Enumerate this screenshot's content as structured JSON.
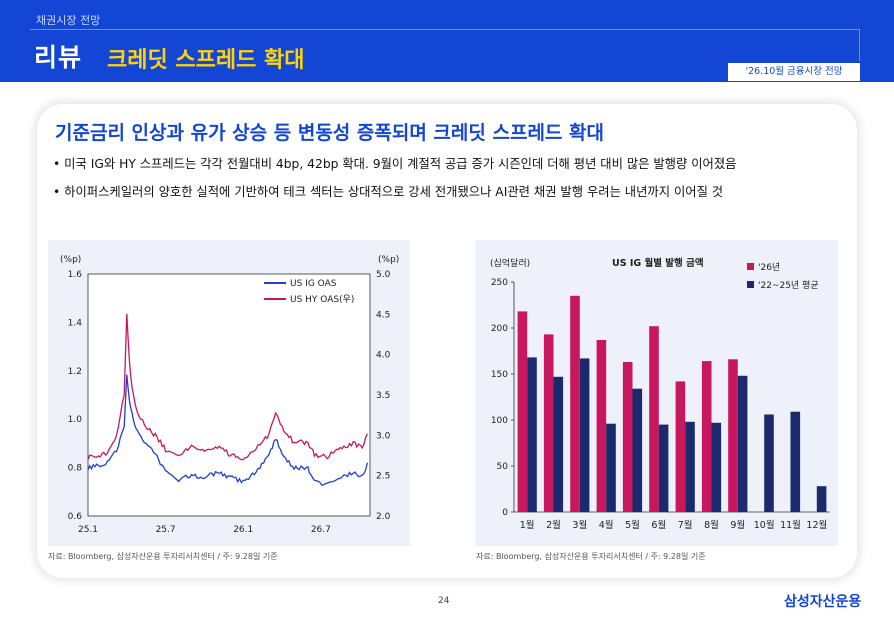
{
  "header": {
    "section": "채권시장 전망",
    "title": "리뷰",
    "subtitle": "크레딧 스프레드 확대",
    "date_badge": "'26.10월 금융시장 전망"
  },
  "main": {
    "headline": "기준금리 인상과 유가 상승 등 변동성 증폭되며 크레딧 스프레드 확대",
    "bullets": [
      "• 미국 IG와 HY 스프레드는 각각 전월대비 4bp, 42bp 확대. 9월이 계절적 공급 증가 시즌인데 더해 평년 대비 많은 발행량 이어졌음",
      "• 하이퍼스케일러의 양호한 실적에 기반하여 테크 섹터는 상대적으로 강세 전개됐으나 AI관련 채권 발행 우려는 내년까지 이어질 것"
    ]
  },
  "footer": {
    "source_left": "자료: Bloomberg, 삼성자산운용 투자리서치센터 / 주: 9.28일 기준",
    "source_right": "자료: Bloomberg, 삼성자산운용 투자리서치센터 / 주: 9.28일 기준",
    "page_number": "24",
    "logo_text": "삼성자산운용"
  },
  "colors": {
    "brand_blue": "#1446d6",
    "accent_yellow": "#ffd400",
    "ig_line": "#1f3fd4",
    "hy_line": "#c8175d",
    "bar_2026": "#c8175d",
    "bar_avg": "#1a2a6c"
  },
  "chart_data": [
    {
      "type": "line",
      "title": "",
      "left_unit": "(%p)",
      "right_unit": "(%p)",
      "x_ticks": [
        "25.1",
        "25.7",
        "26.1",
        "26.7"
      ],
      "y_left_ticks": [
        "1.6",
        "1.4",
        "1.2",
        "1.0",
        "0.8",
        "0.6"
      ],
      "y_right_ticks": [
        "5.0",
        "4.5",
        "4.0",
        "3.5",
        "3.0",
        "2.5",
        "2.0"
      ],
      "ylim_left": [
        0.6,
        1.6
      ],
      "ylim_right": [
        2.0,
        5.0
      ],
      "xlim": [
        "25.1",
        "26.10"
      ],
      "legend_position": "top-right",
      "series": [
        {
          "name": "US IG OAS",
          "axis": "left",
          "color": "#1f3fd4",
          "points": [
            [
              0,
              0.8
            ],
            [
              0.8,
              0.81
            ],
            [
              1.5,
              0.82
            ],
            [
              2.2,
              0.87
            ],
            [
              2.8,
              0.97
            ],
            [
              3.0,
              1.18
            ],
            [
              3.2,
              1.08
            ],
            [
              3.4,
              1.02
            ],
            [
              3.8,
              0.95
            ],
            [
              4.5,
              0.9
            ],
            [
              5.2,
              0.86
            ],
            [
              6.0,
              0.78
            ],
            [
              7.0,
              0.75
            ],
            [
              8.0,
              0.77
            ],
            [
              9.0,
              0.76
            ],
            [
              10.0,
              0.78
            ],
            [
              11.0,
              0.76
            ],
            [
              12.0,
              0.74
            ],
            [
              13.0,
              0.78
            ],
            [
              14.0,
              0.85
            ],
            [
              14.5,
              0.92
            ],
            [
              15.0,
              0.86
            ],
            [
              15.8,
              0.8
            ],
            [
              16.6,
              0.8
            ],
            [
              17.0,
              0.8
            ],
            [
              17.5,
              0.74
            ],
            [
              18.5,
              0.73
            ],
            [
              19.5,
              0.76
            ],
            [
              20.5,
              0.78
            ],
            [
              21.2,
              0.76
            ],
            [
              21.6,
              0.82
            ]
          ]
        },
        {
          "name": "US HY OAS(우)",
          "axis": "right",
          "color": "#c8175d",
          "points": [
            [
              0,
              2.72
            ],
            [
              0.8,
              2.75
            ],
            [
              1.5,
              2.77
            ],
            [
              2.2,
              3.0
            ],
            [
              2.8,
              3.5
            ],
            [
              3.0,
              4.52
            ],
            [
              3.2,
              3.9
            ],
            [
              3.4,
              3.6
            ],
            [
              3.8,
              3.3
            ],
            [
              4.5,
              3.1
            ],
            [
              5.2,
              3.0
            ],
            [
              6.0,
              2.82
            ],
            [
              7.0,
              2.75
            ],
            [
              8.0,
              2.85
            ],
            [
              9.0,
              2.8
            ],
            [
              10.0,
              2.86
            ],
            [
              11.0,
              2.76
            ],
            [
              12.0,
              2.7
            ],
            [
              13.0,
              2.84
            ],
            [
              14.0,
              3.0
            ],
            [
              14.5,
              3.3
            ],
            [
              15.0,
              3.1
            ],
            [
              15.8,
              2.94
            ],
            [
              16.6,
              2.92
            ],
            [
              17.0,
              2.9
            ],
            [
              17.5,
              2.76
            ],
            [
              18.5,
              2.74
            ],
            [
              19.5,
              2.82
            ],
            [
              20.5,
              2.9
            ],
            [
              21.2,
              2.85
            ],
            [
              21.6,
              3.02
            ]
          ]
        }
      ]
    },
    {
      "type": "bar",
      "title": "US IG 월별 발행 금액",
      "unit": "(십억달러)",
      "categories": [
        "1월",
        "2월",
        "3월",
        "4월",
        "5월",
        "6월",
        "7월",
        "8월",
        "9월",
        "10월",
        "11월",
        "12월"
      ],
      "ylim": [
        0,
        250
      ],
      "y_ticks": [
        "0",
        "50",
        "100",
        "150",
        "200",
        "250"
      ],
      "legend_position": "top-right",
      "series": [
        {
          "name": "'26년",
          "color": "#c8175d",
          "values": [
            218,
            193,
            235,
            187,
            163,
            202,
            142,
            164,
            166,
            null,
            null,
            null
          ]
        },
        {
          "name": "'22~25년 평균",
          "color": "#1a2a6c",
          "values": [
            168,
            147,
            167,
            96,
            134,
            95,
            98,
            97,
            148,
            106,
            109,
            28
          ]
        }
      ]
    }
  ]
}
